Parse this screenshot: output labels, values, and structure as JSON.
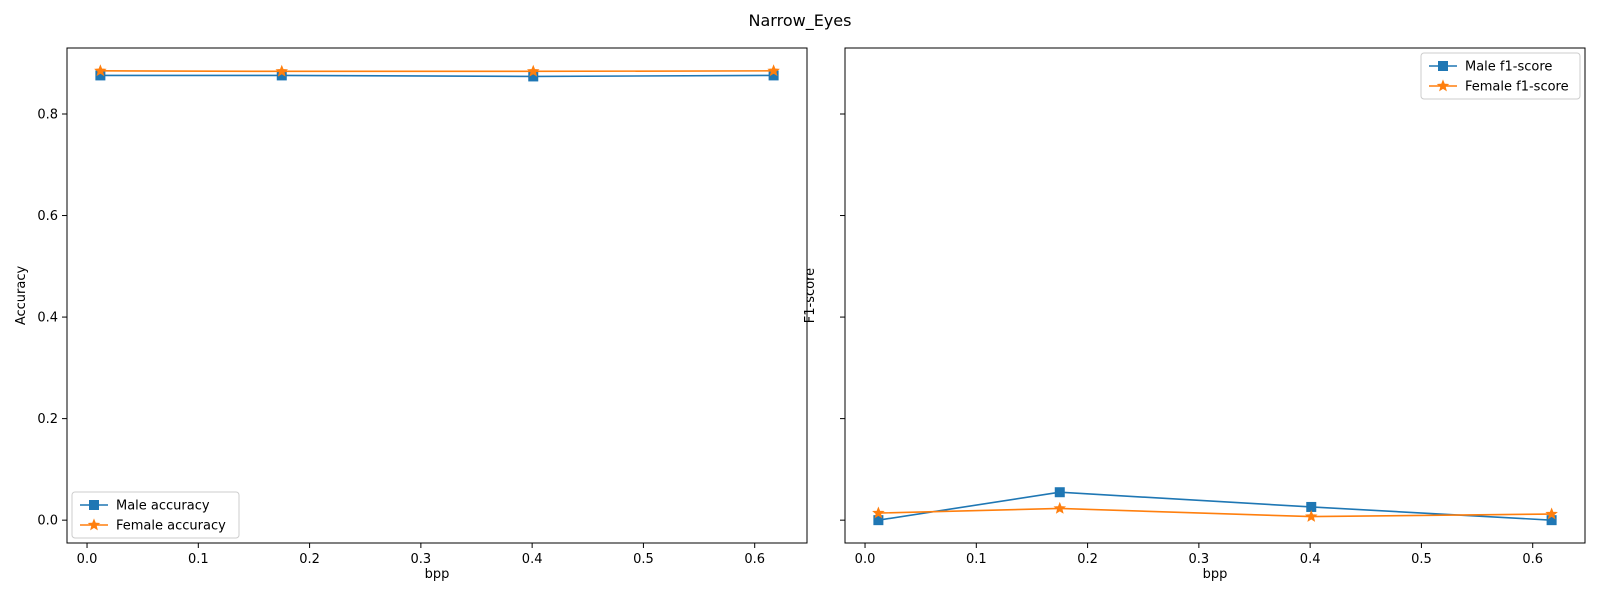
{
  "figure": {
    "title": "Narrow_Eyes"
  },
  "chart_data": [
    {
      "type": "line",
      "title": "",
      "xlabel": "bpp",
      "ylabel": "Accuracy",
      "xlim": [
        -0.018,
        0.647
      ],
      "ylim": [
        -0.045,
        0.93
      ],
      "xticks": [
        0.0,
        0.1,
        0.2,
        0.3,
        0.4,
        0.5,
        0.6
      ],
      "xtick_labels": [
        "0.0",
        "0.1",
        "0.2",
        "0.3",
        "0.4",
        "0.5",
        "0.6"
      ],
      "yticks": [
        0.0,
        0.2,
        0.4,
        0.6,
        0.8
      ],
      "ytick_labels": [
        "0.0",
        "0.2",
        "0.4",
        "0.6",
        "0.8"
      ],
      "show_yticklabels": true,
      "grid": false,
      "legend": "lower-left",
      "series": [
        {
          "name": "Male accuracy",
          "color": "#1f77b4",
          "marker": "square",
          "points": [
            [
              0.012,
              0.876
            ],
            [
              0.175,
              0.876
            ],
            [
              0.401,
              0.874
            ],
            [
              0.617,
              0.876
            ]
          ]
        },
        {
          "name": "Female accuracy",
          "color": "#ff7f0e",
          "marker": "star",
          "points": [
            [
              0.012,
              0.885
            ],
            [
              0.175,
              0.884
            ],
            [
              0.401,
              0.884
            ],
            [
              0.617,
              0.885
            ]
          ]
        }
      ]
    },
    {
      "type": "line",
      "title": "",
      "xlabel": "bpp",
      "ylabel": "F1-score",
      "xlim": [
        -0.018,
        0.647
      ],
      "ylim": [
        -0.045,
        0.93
      ],
      "xticks": [
        0.0,
        0.1,
        0.2,
        0.3,
        0.4,
        0.5,
        0.6
      ],
      "xtick_labels": [
        "0.0",
        "0.1",
        "0.2",
        "0.3",
        "0.4",
        "0.5",
        "0.6"
      ],
      "yticks": [
        0.0,
        0.2,
        0.4,
        0.6,
        0.8
      ],
      "ytick_labels": [
        "",
        "",
        "",
        "",
        ""
      ],
      "show_yticklabels": false,
      "grid": false,
      "legend": "upper-right",
      "series": [
        {
          "name": "Male f1-score",
          "color": "#1f77b4",
          "marker": "square",
          "points": [
            [
              0.012,
              0.0
            ],
            [
              0.175,
              0.055
            ],
            [
              0.401,
              0.026
            ],
            [
              0.617,
              0.0
            ]
          ]
        },
        {
          "name": "Female f1-score",
          "color": "#ff7f0e",
          "marker": "star",
          "points": [
            [
              0.012,
              0.014
            ],
            [
              0.175,
              0.023
            ],
            [
              0.401,
              0.007
            ],
            [
              0.617,
              0.012
            ]
          ]
        }
      ]
    }
  ]
}
